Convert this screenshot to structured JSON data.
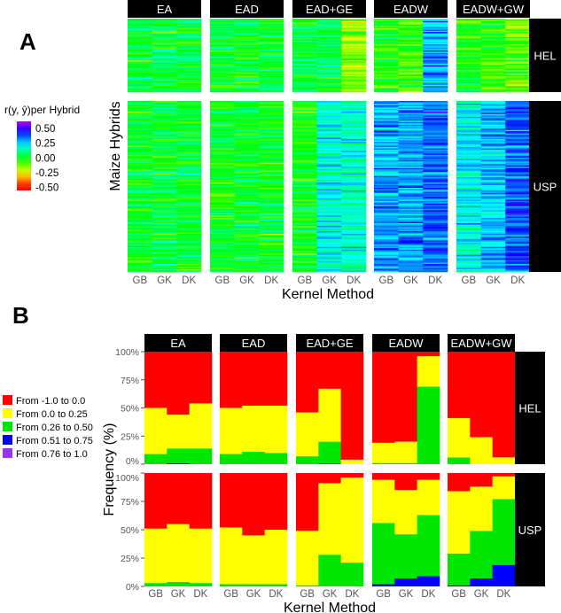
{
  "chart_data": [
    {
      "panel_label": "A",
      "type": "heatmap",
      "xlabel": "Kernel Method",
      "ylabel": "Maize Hybrids",
      "facets_columns": [
        "EA",
        "EAD",
        "EAD+GE",
        "EADW",
        "EADW+GW"
      ],
      "facets_rows": [
        "HEL",
        "USP"
      ],
      "categories": [
        "GB",
        "GK",
        "DK"
      ],
      "legend": {
        "title": "r(y, ŷ)per Hybrid",
        "ticks": [
          "0.50",
          "0.25",
          "0.00",
          "-0.25",
          "-0.50"
        ],
        "tick_values": [
          0.5,
          0.25,
          0,
          -0.25,
          -0.5
        ],
        "range": [
          -0.55,
          0.62
        ]
      },
      "approx_mean_correlation": {
        "HEL": [
          [
            0.02,
            0.03,
            0.03
          ],
          [
            0.02,
            0.02,
            0.02
          ],
          [
            0.03,
            0.05,
            -0.15
          ],
          [
            -0.05,
            -0.07,
            0.3
          ],
          [
            -0.02,
            -0.06,
            -0.1
          ]
        ],
        "USP": [
          [
            0.02,
            0.03,
            0.02
          ],
          [
            0.0,
            0.01,
            0.01
          ],
          [
            -0.02,
            0.2,
            0.17
          ],
          [
            0.3,
            0.31,
            0.36
          ],
          [
            0.2,
            0.28,
            0.38
          ]
        ]
      }
    },
    {
      "panel_label": "B",
      "type": "bar",
      "stacked": true,
      "xlabel": "Kernel Method",
      "ylabel": "Frequency (%)",
      "ylim": [
        0,
        100
      ],
      "yticks": [
        "0%",
        "25%",
        "50%",
        "75%",
        "100%"
      ],
      "facets_columns": [
        "EA",
        "EAD",
        "EAD+GE",
        "EADW",
        "EADW+GW"
      ],
      "facets_rows": [
        "HEL",
        "USP"
      ],
      "categories": [
        "GB",
        "GK",
        "DK"
      ],
      "legend": [
        {
          "label": "From -1.0 to 0.0",
          "color": "#ff0000"
        },
        {
          "label": "From 0.0 to 0.25",
          "color": "#ffff00"
        },
        {
          "label": "From 0.26 to 0.50",
          "color": "#00e600"
        },
        {
          "label": "From 0.51 to 0.75",
          "color": "#0000ff"
        },
        {
          "label": "From 0.76 to 1.0",
          "color": "#9933ff"
        }
      ],
      "series_order_bottom_to_top": [
        "From 0.76 to 1.0",
        "From 0.51 to 0.75",
        "From 0.26 to 0.50",
        "From 0.0 to 0.25",
        "From -1.0 to 0.0"
      ],
      "values_percent": {
        "HEL": [
          [
            [
              0,
              0,
              9,
              41,
              50
            ],
            [
              0,
              1,
              13,
              30,
              56
            ],
            [
              0,
              0,
              14,
              40,
              46
            ]
          ],
          [
            [
              0,
              0,
              9,
              41,
              50
            ],
            [
              0,
              0,
              11,
              41,
              48
            ],
            [
              0,
              0,
              10,
              42,
              48
            ]
          ],
          [
            [
              0,
              0,
              7,
              39,
              54
            ],
            [
              0,
              0.5,
              19.5,
              47,
              33
            ],
            [
              0,
              0,
              0,
              4,
              96
            ]
          ],
          [
            [
              0,
              0,
              1,
              18,
              81
            ],
            [
              0,
              0,
              1,
              19,
              80
            ],
            [
              0,
              0,
              69,
              27,
              4
            ]
          ],
          [
            [
              0,
              0,
              6,
              35,
              59
            ],
            [
              0,
              0,
              0,
              24,
              76
            ],
            [
              0,
              0,
              0,
              6,
              94
            ]
          ]
        ],
        "USP": [
          [
            [
              0,
              0,
              3,
              48,
              49
            ],
            [
              0,
              0,
              4,
              51,
              45
            ],
            [
              0,
              0,
              3,
              48,
              49
            ]
          ],
          [
            [
              0,
              0,
              2,
              50,
              48
            ],
            [
              0,
              0,
              2,
              43,
              55
            ],
            [
              0,
              0,
              2,
              48,
              50
            ]
          ],
          [
            [
              0,
              0,
              1,
              48,
              51
            ],
            [
              0,
              0,
              28,
              63,
              9
            ],
            [
              0,
              0,
              21,
              75,
              4
            ]
          ],
          [
            [
              0,
              2,
              54,
              38,
              6
            ],
            [
              0,
              7,
              39,
              39,
              15
            ],
            [
              0,
              9,
              54,
              31,
              6
            ]
          ],
          [
            [
              0,
              1,
              28,
              55,
              16
            ],
            [
              0,
              7,
              42,
              39,
              12
            ],
            [
              0,
              19,
              58,
              20,
              3
            ]
          ]
        ]
      }
    }
  ]
}
